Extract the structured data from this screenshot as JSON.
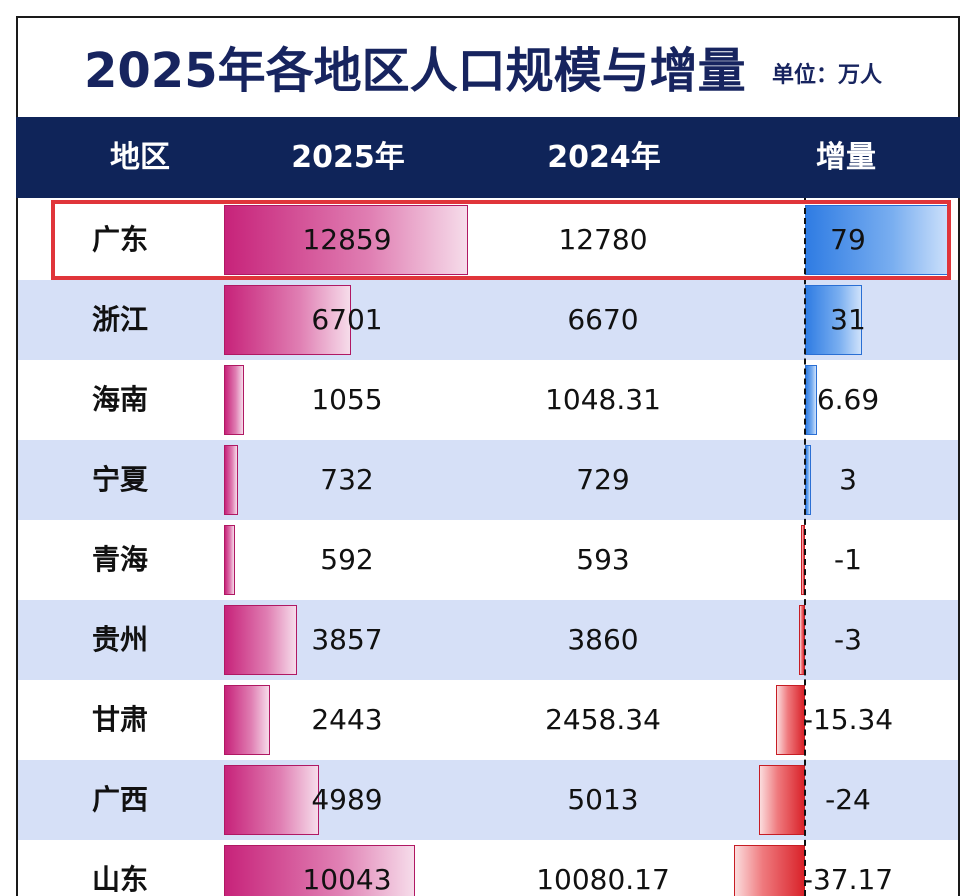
{
  "title": "2025年各地区人口规模与增量",
  "unit": "单位：万人",
  "headers": {
    "region": "地区",
    "y2025": "2025年",
    "y2024": "2024年",
    "delta": "增量"
  },
  "highlighted_region": "广东",
  "colors": {
    "header_bg": "#0f2459",
    "title": "#17245f",
    "row_alt": "#d6e0f7",
    "bar_2025": "#c7237a",
    "increase": "#2f7ce3",
    "decrease": "#d9232a",
    "highlight_border": "#e0353a"
  },
  "rows": [
    {
      "region": "广东",
      "y2025": "12859",
      "y2024": "12780",
      "delta": "79"
    },
    {
      "region": "浙江",
      "y2025": "6701",
      "y2024": "6670",
      "delta": "31"
    },
    {
      "region": "海南",
      "y2025": "1055",
      "y2024": "1048.31",
      "delta": "6.69"
    },
    {
      "region": "宁夏",
      "y2025": "732",
      "y2024": "729",
      "delta": "3"
    },
    {
      "region": "青海",
      "y2025": "592",
      "y2024": "593",
      "delta": "-1"
    },
    {
      "region": "贵州",
      "y2025": "3857",
      "y2024": "3860",
      "delta": "-3"
    },
    {
      "region": "甘肃",
      "y2025": "2443",
      "y2024": "2458.34",
      "delta": "-15.34"
    },
    {
      "region": "广西",
      "y2025": "4989",
      "y2024": "5013",
      "delta": "-24"
    },
    {
      "region": "山东",
      "y2025": "10043",
      "y2024": "10080.17",
      "delta": "-37.17"
    }
  ],
  "chart_data": {
    "type": "table",
    "title": "2025年各地区人口规模与增量",
    "unit": "单位：万人",
    "columns": [
      "地区",
      "2025年",
      "2024年",
      "增量"
    ],
    "categories": [
      "广东",
      "浙江",
      "海南",
      "宁夏",
      "青海",
      "贵州",
      "甘肃",
      "广西",
      "山东"
    ],
    "series": [
      {
        "name": "2025年",
        "values": [
          12859,
          6701,
          1055,
          732,
          592,
          3857,
          2443,
          4989,
          10043
        ]
      },
      {
        "name": "2024年",
        "values": [
          12780,
          6670,
          1048.31,
          729,
          593,
          3860,
          2458.34,
          5013,
          10080.17
        ]
      },
      {
        "name": "增量",
        "values": [
          79,
          31,
          6.69,
          3,
          -1,
          -3,
          -15.34,
          -24,
          -37.17
        ]
      }
    ],
    "bars": {
      "2025年": "data bars",
      "增量": "diverging data bars (positive blue, negative red)"
    }
  }
}
